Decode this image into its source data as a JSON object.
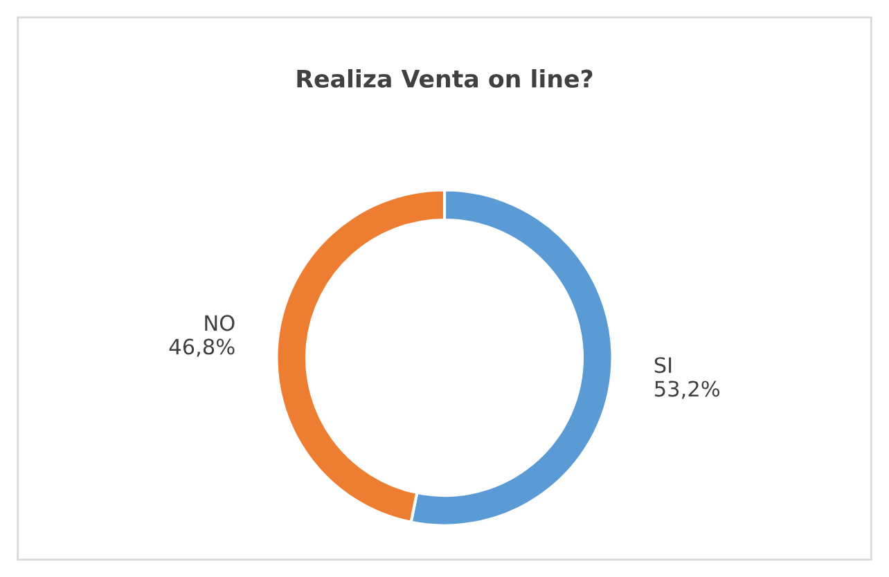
{
  "chart_data": {
    "type": "donut",
    "title": "Realiza Venta on line?",
    "categories": [
      "SI",
      "NO"
    ],
    "values": [
      53.2,
      46.8
    ],
    "value_labels": [
      "53,2%",
      "46,8%"
    ],
    "colors": [
      "#5b9bd5",
      "#ed7d31"
    ],
    "legend": false
  }
}
